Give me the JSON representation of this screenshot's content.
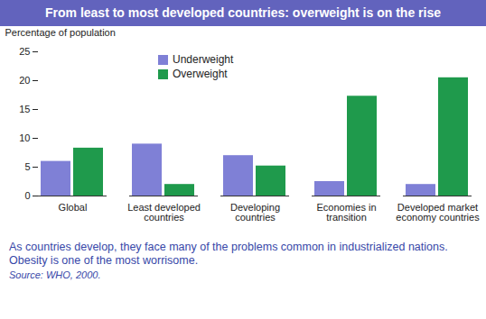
{
  "chart_data": {
    "type": "bar",
    "title": "From least to most developed countries: overweight is on the rise",
    "y_label": "Percentage of population",
    "categories": [
      "Global",
      "Least developed countries",
      "Developing countries",
      "Economies in transition",
      "Developed market economy countries"
    ],
    "series": [
      {
        "name": "Underweight",
        "color": "#7f80d6",
        "values": [
          6,
          9,
          7,
          2.5,
          2
        ]
      },
      {
        "name": "Overweight",
        "color": "#1f9a4c",
        "values": [
          8.3,
          2,
          5.2,
          17.3,
          20.5
        ]
      }
    ],
    "ylim": [
      0,
      25
    ],
    "yticks": [
      0,
      5,
      10,
      15,
      20,
      25
    ],
    "grid": false,
    "legend": "top-left",
    "caption": "As countries develop, they face many of the problems common in industrialized nations. Obesity is one of the most worrisome.",
    "source": "Source: WHO, 2000."
  }
}
